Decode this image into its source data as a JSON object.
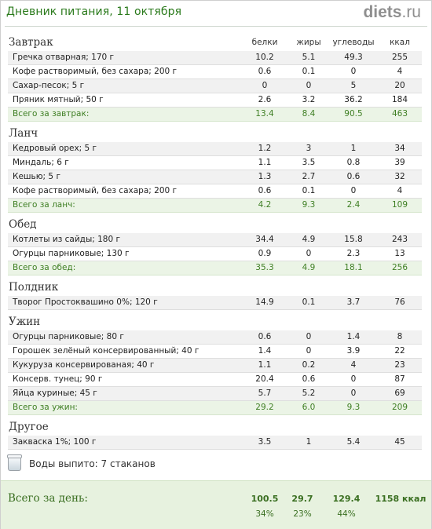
{
  "header": {
    "title": "Дневник питания, 11 октября",
    "logo_main": "diets",
    "logo_suffix": ".ru"
  },
  "columns": [
    "белки",
    "жиры",
    "углеводы",
    "ккал"
  ],
  "sections": [
    {
      "name": "Завтрак",
      "show_columns": true,
      "rows": [
        {
          "name": "Гречка отварная; 170 г",
          "v": [
            "10.2",
            "5.1",
            "49.3",
            "255"
          ]
        },
        {
          "name": "Кофе растворимый, без сахара; 200 г",
          "v": [
            "0.6",
            "0.1",
            "0",
            "4"
          ]
        },
        {
          "name": "Сахар-песок; 5 г",
          "v": [
            "0",
            "0",
            "5",
            "20"
          ]
        },
        {
          "name": "Пряник мятный; 50 г",
          "v": [
            "2.6",
            "3.2",
            "36.2",
            "184"
          ]
        }
      ],
      "total": {
        "name": "Всего за завтрак:",
        "v": [
          "13.4",
          "8.4",
          "90.5",
          "463"
        ]
      }
    },
    {
      "name": "Ланч",
      "rows": [
        {
          "name": "Кедровый орех; 5 г",
          "v": [
            "1.2",
            "3",
            "1",
            "34"
          ]
        },
        {
          "name": "Миндаль; 6 г",
          "v": [
            "1.1",
            "3.5",
            "0.8",
            "39"
          ]
        },
        {
          "name": "Кешью; 5 г",
          "v": [
            "1.3",
            "2.7",
            "0.6",
            "32"
          ]
        },
        {
          "name": "Кофе растворимый, без сахара; 200 г",
          "v": [
            "0.6",
            "0.1",
            "0",
            "4"
          ]
        }
      ],
      "total": {
        "name": "Всего за ланч:",
        "v": [
          "4.2",
          "9.3",
          "2.4",
          "109"
        ]
      }
    },
    {
      "name": "Обед",
      "rows": [
        {
          "name": "Котлеты из сайды; 180 г",
          "v": [
            "34.4",
            "4.9",
            "15.8",
            "243"
          ]
        },
        {
          "name": "Огурцы парниковые; 130 г",
          "v": [
            "0.9",
            "0",
            "2.3",
            "13"
          ]
        }
      ],
      "total": {
        "name": "Всего за обед:",
        "v": [
          "35.3",
          "4.9",
          "18.1",
          "256"
        ]
      }
    },
    {
      "name": "Полдник",
      "rows": [
        {
          "name": "Творог Простоквашино 0%; 120 г",
          "v": [
            "14.9",
            "0.1",
            "3.7",
            "76"
          ]
        }
      ]
    },
    {
      "name": "Ужин",
      "rows": [
        {
          "name": "Огурцы парниковые; 80 г",
          "v": [
            "0.6",
            "0",
            "1.4",
            "8"
          ]
        },
        {
          "name": "Горошек зелёный консервированный; 40 г",
          "v": [
            "1.4",
            "0",
            "3.9",
            "22"
          ]
        },
        {
          "name": "Кукуруза консервированая; 40 г",
          "v": [
            "1.1",
            "0.2",
            "4",
            "23"
          ]
        },
        {
          "name": "Консерв. тунец; 90 г",
          "v": [
            "20.4",
            "0.6",
            "0",
            "87"
          ]
        },
        {
          "name": "Яйца куриные; 45 г",
          "v": [
            "5.7",
            "5.2",
            "0",
            "69"
          ]
        }
      ],
      "total": {
        "name": "Всего за ужин:",
        "v": [
          "29.2",
          "6.0",
          "9.3",
          "209"
        ]
      }
    },
    {
      "name": "Другое",
      "rows": [
        {
          "name": "Закваска 1%; 100 г",
          "v": [
            "3.5",
            "1",
            "5.4",
            "45"
          ]
        }
      ]
    }
  ],
  "water": {
    "icon": "water-glass-icon",
    "text": "Воды выпито: 7 стаканов"
  },
  "day_total": {
    "label": "Всего за день:",
    "values": [
      "100.5",
      "29.7",
      "129.4",
      "1158 ккал"
    ],
    "percents": [
      "34%",
      "23%",
      "44%"
    ]
  },
  "colors": {
    "accent_green": "#3f7f24",
    "total_row_bg": "#ebf4e6",
    "title_green": "#2a7a1b"
  }
}
